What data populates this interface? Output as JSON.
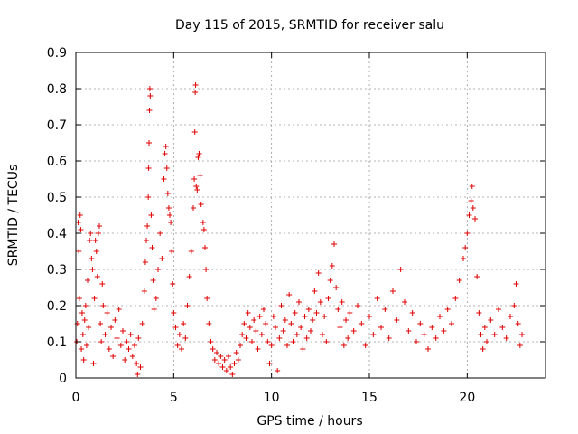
{
  "chart_data": {
    "type": "scatter",
    "title": "Day 115 of 2015, SRMTID for receiver salu",
    "xlabel": "GPS time / hours",
    "ylabel": "SRMTID / TECUs",
    "xlim": [
      0,
      24
    ],
    "ylim": [
      0,
      0.9
    ],
    "xticks": [
      0,
      5,
      10,
      15,
      20
    ],
    "xtick_labels": [
      "0",
      "5",
      "10",
      "15",
      "20"
    ],
    "yticks": [
      0,
      0.1,
      0.2,
      0.3,
      0.4,
      0.5,
      0.6,
      0.7,
      0.8,
      0.9
    ],
    "ytick_labels": [
      "0",
      "0.1",
      "0.2",
      "0.3",
      "0.4",
      "0.5",
      "0.6",
      "0.7",
      "0.8",
      "0.9"
    ],
    "grid": true,
    "marker": "+",
    "color": "#e00000",
    "series": [
      {
        "name": "SRMTID",
        "points": [
          [
            0.05,
            0.1
          ],
          [
            0.08,
            0.15
          ],
          [
            0.12,
            0.43
          ],
          [
            0.15,
            0.35
          ],
          [
            0.18,
            0.22
          ],
          [
            0.22,
            0.45
          ],
          [
            0.25,
            0.41
          ],
          [
            0.28,
            0.08
          ],
          [
            0.32,
            0.18
          ],
          [
            0.36,
            0.12
          ],
          [
            0.4,
            0.05
          ],
          [
            0.45,
            0.16
          ],
          [
            0.5,
            0.2
          ],
          [
            0.55,
            0.09
          ],
          [
            0.6,
            0.27
          ],
          [
            0.65,
            0.14
          ],
          [
            0.7,
            0.38
          ],
          [
            0.75,
            0.4
          ],
          [
            0.8,
            0.33
          ],
          [
            0.85,
            0.3
          ],
          [
            0.9,
            0.04
          ],
          [
            0.95,
            0.22
          ],
          [
            1.0,
            0.38
          ],
          [
            1.05,
            0.35
          ],
          [
            1.1,
            0.28
          ],
          [
            1.15,
            0.4
          ],
          [
            1.2,
            0.42
          ],
          [
            1.25,
            0.15
          ],
          [
            1.3,
            0.1
          ],
          [
            1.35,
            0.26
          ],
          [
            1.4,
            0.2
          ],
          [
            1.5,
            0.12
          ],
          [
            1.6,
            0.18
          ],
          [
            1.7,
            0.08
          ],
          [
            1.8,
            0.14
          ],
          [
            1.9,
            0.06
          ],
          [
            2.0,
            0.16
          ],
          [
            2.1,
            0.11
          ],
          [
            2.2,
            0.19
          ],
          [
            2.3,
            0.09
          ],
          [
            2.4,
            0.13
          ],
          [
            2.5,
            0.05
          ],
          [
            2.6,
            0.1
          ],
          [
            2.7,
            0.08
          ],
          [
            2.8,
            0.12
          ],
          [
            2.9,
            0.06
          ],
          [
            3.0,
            0.09
          ],
          [
            3.1,
            0.04
          ],
          [
            3.15,
            0.01
          ],
          [
            3.2,
            0.11
          ],
          [
            3.3,
            0.03
          ],
          [
            3.4,
            0.15
          ],
          [
            3.5,
            0.24
          ],
          [
            3.55,
            0.32
          ],
          [
            3.6,
            0.38
          ],
          [
            3.65,
            0.42
          ],
          [
            3.7,
            0.5
          ],
          [
            3.72,
            0.58
          ],
          [
            3.74,
            0.65
          ],
          [
            3.76,
            0.74
          ],
          [
            3.78,
            0.8
          ],
          [
            3.8,
            0.78
          ],
          [
            3.85,
            0.45
          ],
          [
            3.9,
            0.36
          ],
          [
            3.95,
            0.27
          ],
          [
            4.0,
            0.19
          ],
          [
            4.1,
            0.22
          ],
          [
            4.2,
            0.3
          ],
          [
            4.3,
            0.4
          ],
          [
            4.4,
            0.33
          ],
          [
            4.5,
            0.55
          ],
          [
            4.55,
            0.62
          ],
          [
            4.6,
            0.64
          ],
          [
            4.65,
            0.58
          ],
          [
            4.7,
            0.51
          ],
          [
            4.75,
            0.47
          ],
          [
            4.8,
            0.45
          ],
          [
            4.85,
            0.43
          ],
          [
            4.9,
            0.35
          ],
          [
            4.95,
            0.26
          ],
          [
            5.0,
            0.18
          ],
          [
            5.1,
            0.14
          ],
          [
            5.2,
            0.09
          ],
          [
            5.3,
            0.12
          ],
          [
            5.4,
            0.08
          ],
          [
            5.5,
            0.15
          ],
          [
            5.6,
            0.11
          ],
          [
            5.7,
            0.2
          ],
          [
            5.8,
            0.28
          ],
          [
            5.9,
            0.35
          ],
          [
            6.0,
            0.47
          ],
          [
            6.05,
            0.55
          ],
          [
            6.08,
            0.68
          ],
          [
            6.1,
            0.79
          ],
          [
            6.12,
            0.81
          ],
          [
            6.15,
            0.53
          ],
          [
            6.2,
            0.52
          ],
          [
            6.25,
            0.61
          ],
          [
            6.3,
            0.62
          ],
          [
            6.35,
            0.56
          ],
          [
            6.4,
            0.48
          ],
          [
            6.5,
            0.43
          ],
          [
            6.55,
            0.41
          ],
          [
            6.6,
            0.36
          ],
          [
            6.65,
            0.3
          ],
          [
            6.7,
            0.22
          ],
          [
            6.8,
            0.15
          ],
          [
            6.9,
            0.1
          ],
          [
            7.0,
            0.08
          ],
          [
            7.1,
            0.05
          ],
          [
            7.2,
            0.07
          ],
          [
            7.3,
            0.04
          ],
          [
            7.4,
            0.06
          ],
          [
            7.5,
            0.03
          ],
          [
            7.6,
            0.05
          ],
          [
            7.7,
            0.02
          ],
          [
            7.8,
            0.06
          ],
          [
            7.9,
            0.03
          ],
          [
            8.0,
            0.01
          ],
          [
            8.1,
            0.04
          ],
          [
            8.2,
            0.07
          ],
          [
            8.3,
            0.05
          ],
          [
            8.4,
            0.09
          ],
          [
            8.5,
            0.12
          ],
          [
            8.6,
            0.15
          ],
          [
            8.7,
            0.11
          ],
          [
            8.8,
            0.18
          ],
          [
            8.9,
            0.14
          ],
          [
            9.0,
            0.1
          ],
          [
            9.1,
            0.16
          ],
          [
            9.2,
            0.13
          ],
          [
            9.3,
            0.08
          ],
          [
            9.4,
            0.17
          ],
          [
            9.5,
            0.12
          ],
          [
            9.6,
            0.19
          ],
          [
            9.7,
            0.15
          ],
          [
            9.8,
            0.1
          ],
          [
            9.9,
            0.04
          ],
          [
            10.0,
            0.09
          ],
          [
            10.1,
            0.17
          ],
          [
            10.2,
            0.14
          ],
          [
            10.3,
            0.02
          ],
          [
            10.4,
            0.11
          ],
          [
            10.5,
            0.2
          ],
          [
            10.6,
            0.13
          ],
          [
            10.7,
            0.16
          ],
          [
            10.8,
            0.09
          ],
          [
            10.9,
            0.23
          ],
          [
            11.0,
            0.15
          ],
          [
            11.1,
            0.1
          ],
          [
            11.2,
            0.18
          ],
          [
            11.3,
            0.12
          ],
          [
            11.4,
            0.21
          ],
          [
            11.5,
            0.14
          ],
          [
            11.6,
            0.08
          ],
          [
            11.7,
            0.17
          ],
          [
            11.8,
            0.11
          ],
          [
            11.9,
            0.19
          ],
          [
            12.0,
            0.13
          ],
          [
            12.1,
            0.16
          ],
          [
            12.2,
            0.24
          ],
          [
            12.3,
            0.18
          ],
          [
            12.4,
            0.29
          ],
          [
            12.5,
            0.21
          ],
          [
            12.6,
            0.12
          ],
          [
            12.7,
            0.17
          ],
          [
            12.8,
            0.1
          ],
          [
            12.9,
            0.22
          ],
          [
            13.0,
            0.27
          ],
          [
            13.1,
            0.31
          ],
          [
            13.2,
            0.37
          ],
          [
            13.3,
            0.25
          ],
          [
            13.4,
            0.19
          ],
          [
            13.5,
            0.14
          ],
          [
            13.6,
            0.21
          ],
          [
            13.7,
            0.09
          ],
          [
            13.8,
            0.16
          ],
          [
            13.9,
            0.11
          ],
          [
            14.0,
            0.18
          ],
          [
            14.2,
            0.13
          ],
          [
            14.4,
            0.2
          ],
          [
            14.6,
            0.15
          ],
          [
            14.8,
            0.09
          ],
          [
            15.0,
            0.17
          ],
          [
            15.2,
            0.12
          ],
          [
            15.4,
            0.22
          ],
          [
            15.6,
            0.14
          ],
          [
            15.8,
            0.19
          ],
          [
            16.0,
            0.11
          ],
          [
            16.2,
            0.24
          ],
          [
            16.4,
            0.16
          ],
          [
            16.6,
            0.3
          ],
          [
            16.8,
            0.21
          ],
          [
            17.0,
            0.13
          ],
          [
            17.2,
            0.18
          ],
          [
            17.4,
            0.1
          ],
          [
            17.6,
            0.15
          ],
          [
            17.8,
            0.12
          ],
          [
            18.0,
            0.08
          ],
          [
            18.2,
            0.14
          ],
          [
            18.4,
            0.11
          ],
          [
            18.6,
            0.17
          ],
          [
            18.8,
            0.13
          ],
          [
            19.0,
            0.19
          ],
          [
            19.2,
            0.15
          ],
          [
            19.4,
            0.22
          ],
          [
            19.6,
            0.27
          ],
          [
            19.8,
            0.33
          ],
          [
            19.9,
            0.36
          ],
          [
            20.0,
            0.4
          ],
          [
            20.1,
            0.45
          ],
          [
            20.2,
            0.49
          ],
          [
            20.25,
            0.53
          ],
          [
            20.3,
            0.47
          ],
          [
            20.4,
            0.44
          ],
          [
            20.5,
            0.28
          ],
          [
            20.6,
            0.18
          ],
          [
            20.7,
            0.12
          ],
          [
            20.8,
            0.08
          ],
          [
            20.9,
            0.14
          ],
          [
            21.0,
            0.1
          ],
          [
            21.2,
            0.16
          ],
          [
            21.4,
            0.12
          ],
          [
            21.6,
            0.19
          ],
          [
            21.8,
            0.14
          ],
          [
            22.0,
            0.11
          ],
          [
            22.2,
            0.17
          ],
          [
            22.4,
            0.2
          ],
          [
            22.5,
            0.26
          ],
          [
            22.6,
            0.15
          ],
          [
            22.7,
            0.09
          ],
          [
            22.8,
            0.12
          ]
        ]
      }
    ]
  }
}
